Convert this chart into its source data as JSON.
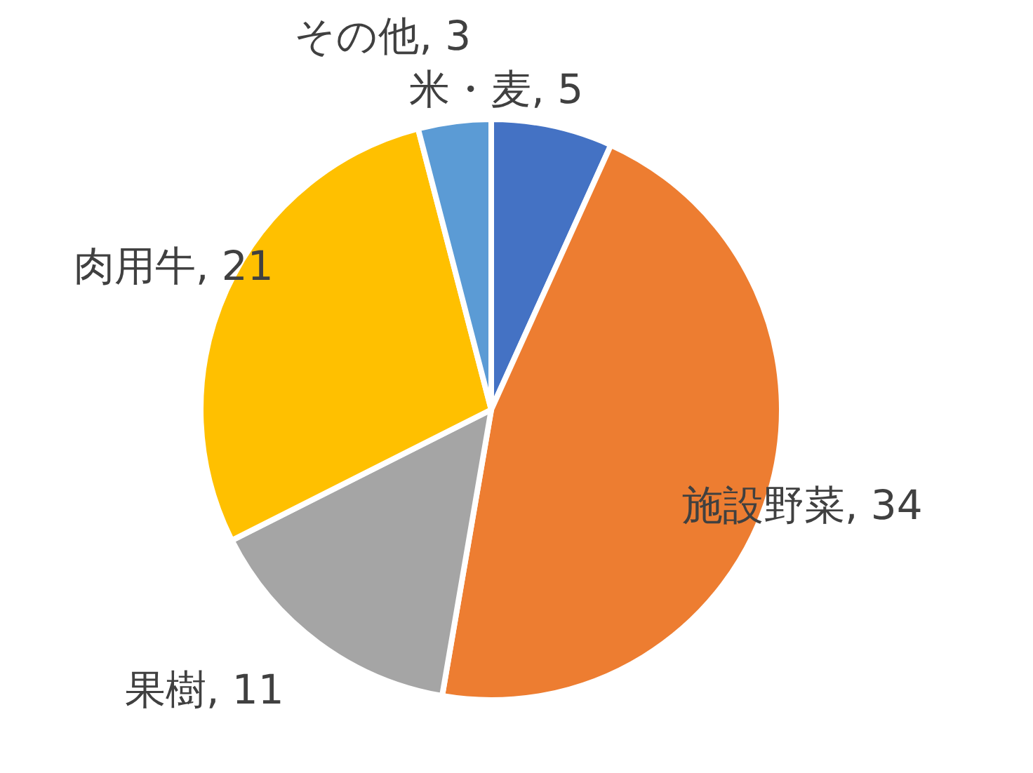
{
  "chart_data": {
    "type": "pie",
    "categories": [
      "米・麦",
      "施設野菜",
      "果樹",
      "肉用牛",
      "その他"
    ],
    "values": [
      5,
      34,
      11,
      21,
      3
    ],
    "colors": [
      "#4472c4",
      "#ed7d31",
      "#a5a5a5",
      "#ffc000",
      "#5b9bd5"
    ],
    "value_labels": [
      ", 5",
      ", 34",
      ", 11",
      ", 21",
      ", 3"
    ]
  }
}
